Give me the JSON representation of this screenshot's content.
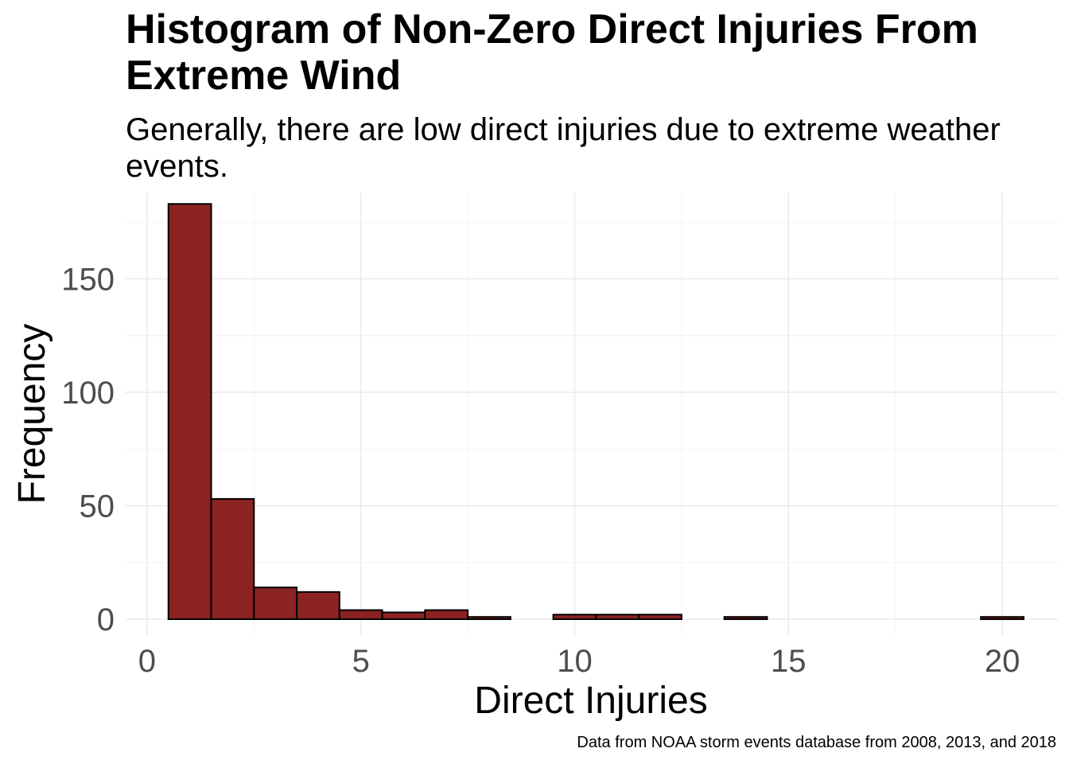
{
  "chart_data": {
    "type": "bar",
    "title": "Histogram of Non-Zero Direct Injuries From Extreme Wind",
    "subtitle": "Generally, there are low direct injuries due to extreme weather events.",
    "caption": "Data from NOAA storm events database from 2008, 2013, and 2018",
    "xlabel": "Direct Injuries",
    "ylabel": "Frequency",
    "bin_width": 1,
    "categories": [
      "1",
      "2",
      "3",
      "4",
      "5",
      "6",
      "7",
      "8",
      "9",
      "10",
      "11",
      "12",
      "13",
      "14",
      "15",
      "16",
      "17",
      "18",
      "19",
      "20"
    ],
    "values": [
      183,
      53,
      14,
      12,
      4,
      3,
      4,
      1,
      0,
      2,
      2,
      2,
      0,
      1,
      0,
      0,
      0,
      0,
      0,
      1
    ],
    "xlim": [
      -0.5,
      21.3
    ],
    "ylim": [
      -7,
      188
    ],
    "xticks": [
      0,
      5,
      10,
      15,
      20
    ],
    "yticks": [
      0,
      50,
      100,
      150
    ],
    "grid": true,
    "colors": {
      "bar_fill": "#8B2323",
      "bar_outline": "#000000",
      "grid_major": "#ebebeb",
      "grid_minor": "#f5f5f5",
      "tick_text": "#4d4d4d"
    }
  }
}
